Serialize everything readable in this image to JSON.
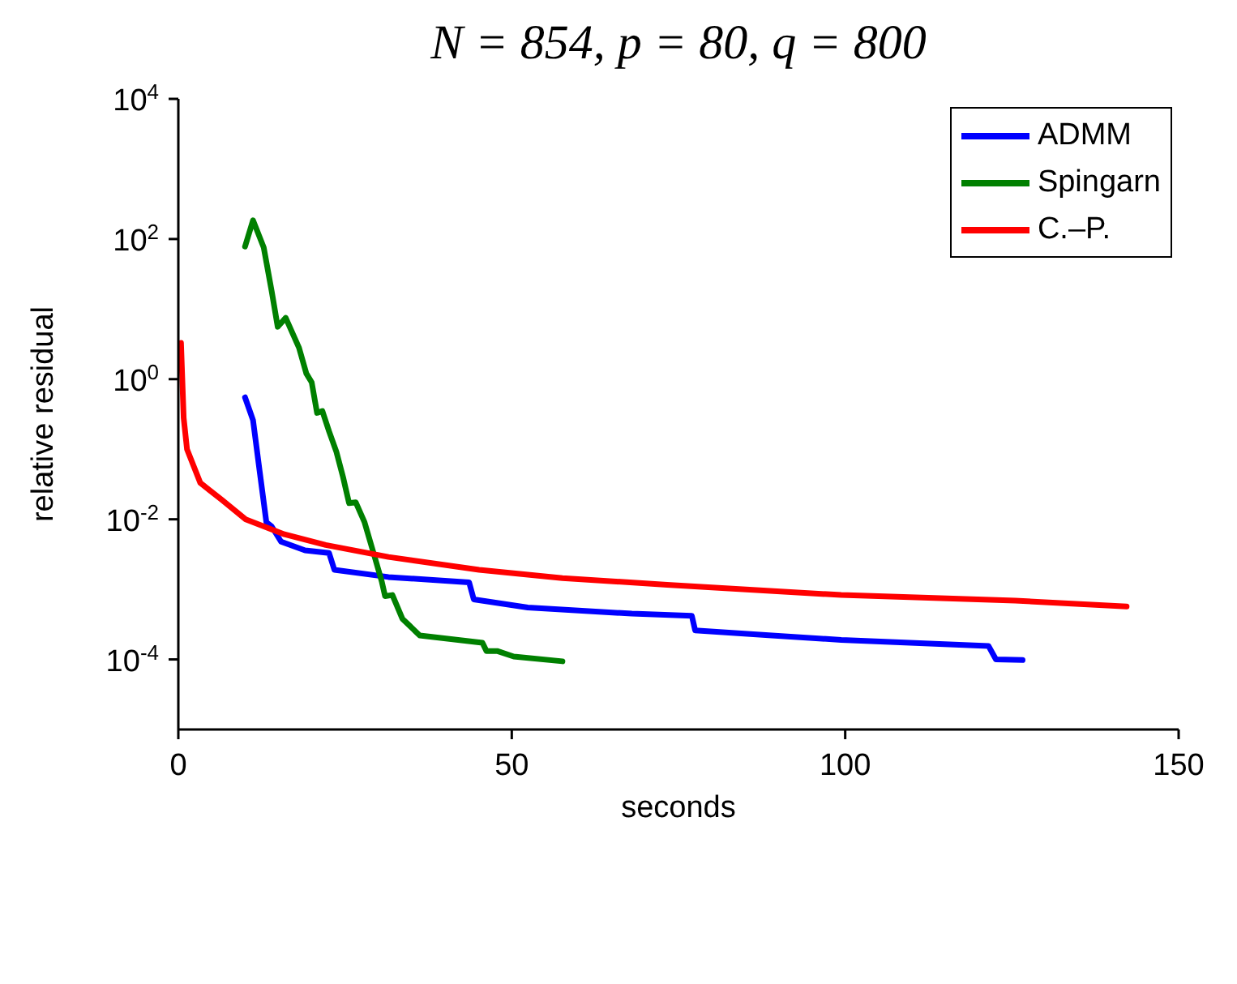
{
  "chart_data": {
    "type": "line",
    "title": "N = 854, p = 80, q = 800",
    "xlabel": "seconds",
    "ylabel": "relative residual",
    "series": [
      {
        "name": "ADMM",
        "color": "#0000ff",
        "x": [
          10,
          11.2,
          12.2,
          13.2,
          14,
          15.4,
          19,
          22.6,
          23.4,
          31.5,
          43.6,
          44.3,
          52.4,
          68,
          77,
          77.5,
          89,
          99.4,
          121.5,
          122.6,
          126.6
        ],
        "values": [
          0.55,
          0.26,
          0.048,
          0.0091,
          0.0079,
          0.0048,
          0.0036,
          0.0033,
          0.0019,
          0.0015,
          0.00126,
          0.00072,
          0.00055,
          0.00045,
          0.00042,
          0.00026,
          0.00022,
          0.00019,
          0.000155,
          0.0001,
          9.8e-05
        ]
      },
      {
        "name": "Spingarn",
        "color": "#008000",
        "x": [
          10,
          11.2,
          12.8,
          14,
          14.9,
          16.1,
          18.1,
          19.2,
          20,
          20.8,
          21.6,
          22.6,
          23.7,
          24.7,
          25.6,
          26.6,
          27.9,
          29.4,
          30.5,
          31,
          32.1,
          33.6,
          36.2,
          45.6,
          46.2,
          47.8,
          50.3,
          57.6
        ],
        "values": [
          78,
          185,
          76,
          18,
          5.6,
          7.5,
          2.8,
          1.2,
          0.9,
          0.33,
          0.35,
          0.18,
          0.092,
          0.04,
          0.017,
          0.0175,
          0.0092,
          0.003,
          0.0013,
          0.0008,
          0.00083,
          0.00038,
          0.00022,
          0.000173,
          0.000132,
          0.000132,
          0.00011,
          9.4e-05
        ]
      },
      {
        "name": "C.–P.",
        "color": "#ff0000",
        "x": [
          0.4,
          0.8,
          1.3,
          3.3,
          6.5,
          10.1,
          15.9,
          22.1,
          31.5,
          45.1,
          57.6,
          73.3,
          99.4,
          125.5,
          142.2
        ],
        "values": [
          3.3,
          0.28,
          0.1,
          0.033,
          0.019,
          0.01,
          0.0061,
          0.0043,
          0.0029,
          0.0019,
          0.00145,
          0.00116,
          0.00083,
          0.00069,
          0.00057
        ]
      }
    ],
    "log": "y",
    "xlim": [
      0,
      150
    ],
    "xticks": [
      0,
      50,
      100,
      150
    ],
    "ylim": [
      1e-05,
      10000
    ],
    "yticks": [
      {
        "value": 0.0001,
        "label": "10$^{-4}$"
      },
      {
        "value": 0.01,
        "label": "10$^{-2}$"
      },
      {
        "value": 1,
        "label": "10$^{0}$"
      },
      {
        "value": 100,
        "label": "10$^{2}$"
      },
      {
        "value": 10000,
        "label": "10$^{4}$"
      }
    ],
    "legend": "top right",
    "marker": "none",
    "line_style": "solid"
  }
}
